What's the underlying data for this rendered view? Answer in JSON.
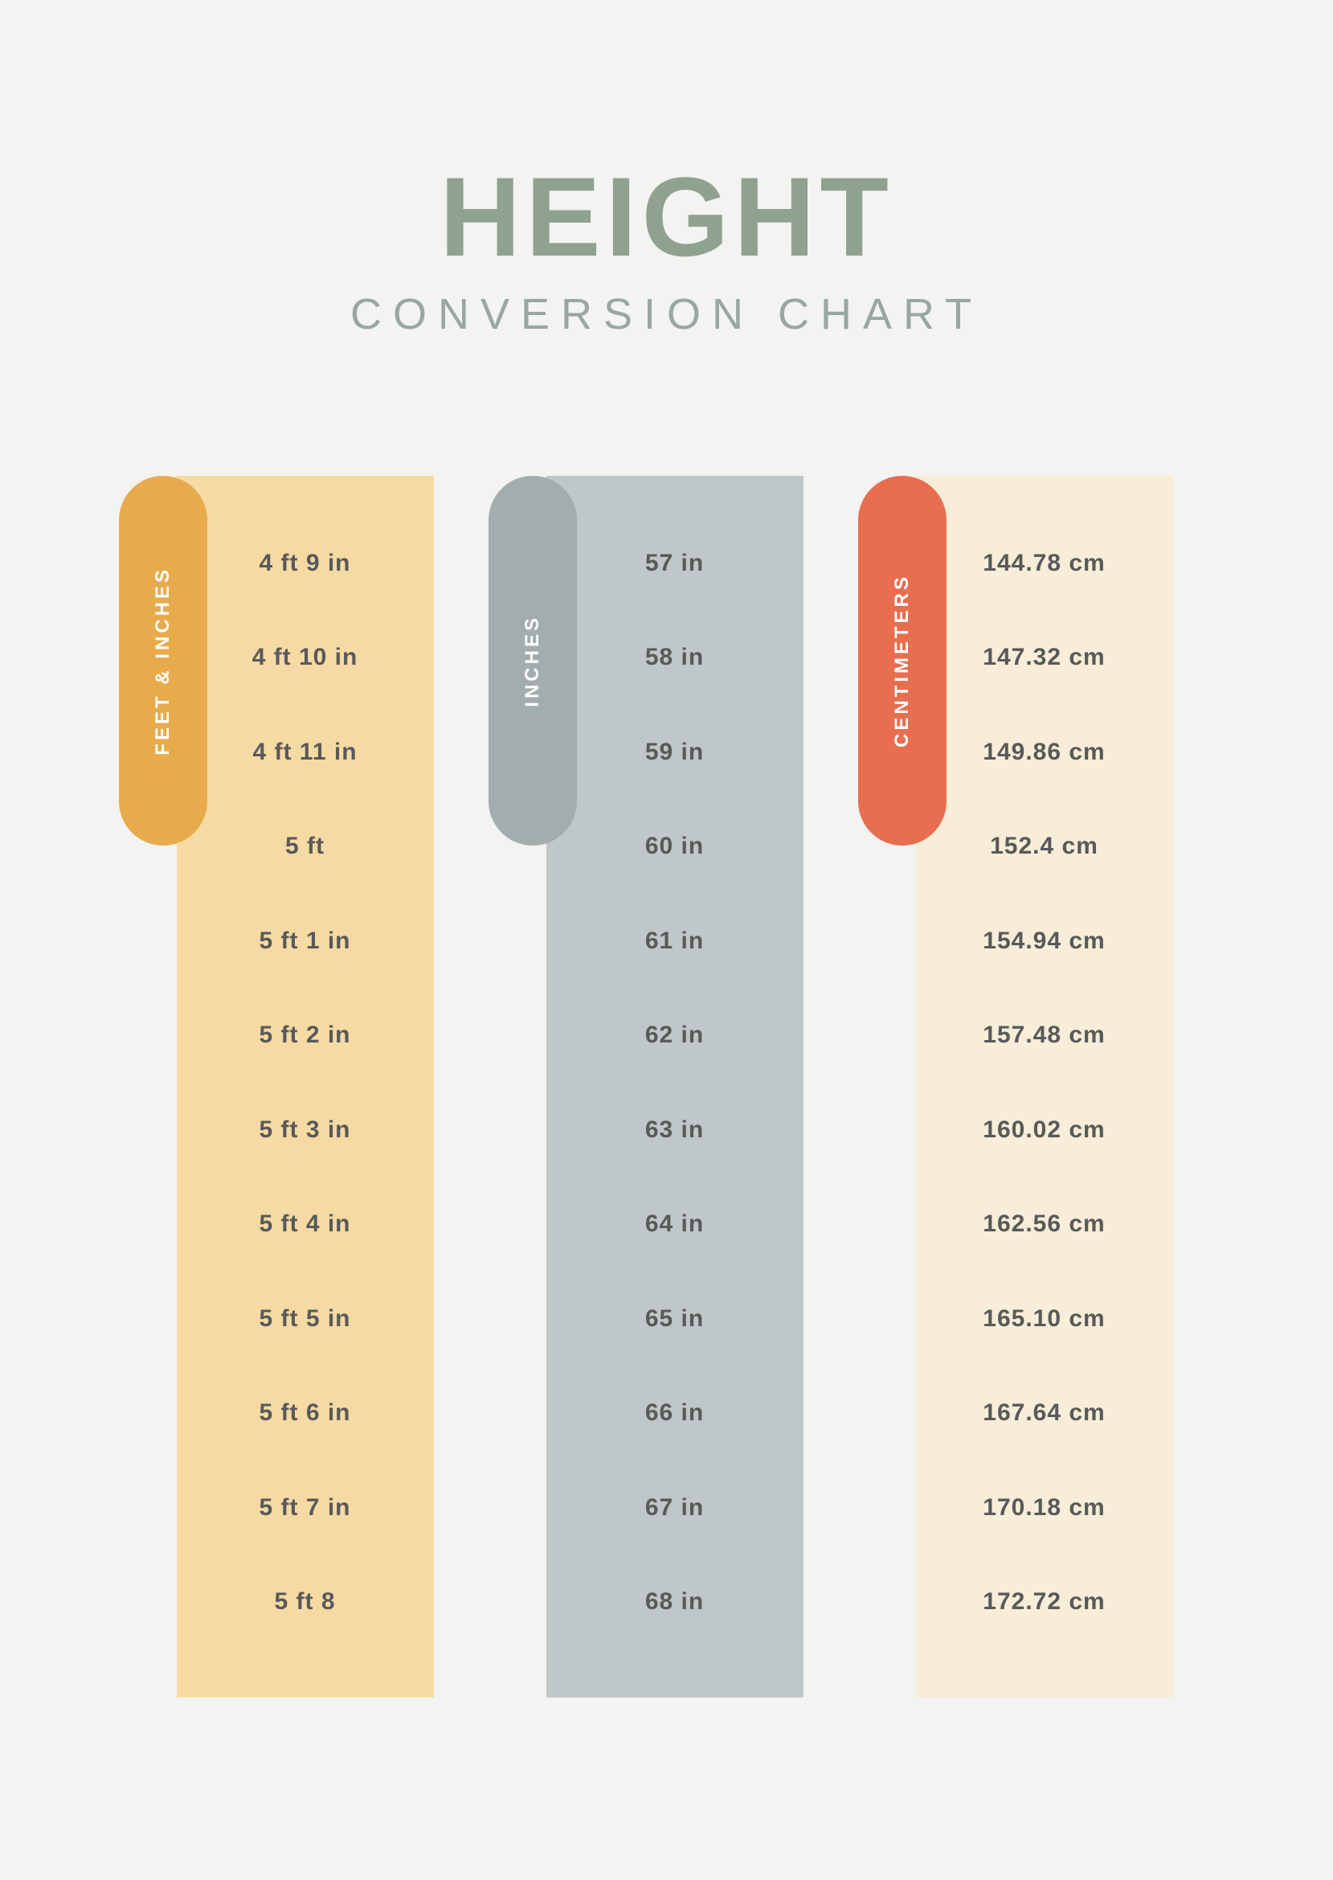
{
  "header": {
    "title": "HEIGHT",
    "subtitle": "CONVERSION CHART",
    "title_color": "#8fa28f",
    "subtitle_color": "#9aa7a0"
  },
  "background_color": "#f3f3f2",
  "columns": [
    {
      "key": "feet",
      "label": "FEET & INCHES",
      "tab_color": "#e8ab4c",
      "col_color": "#f6daa4",
      "values": [
        "4 ft 9 in",
        "4 ft 10 in",
        "4 ft 11 in",
        "5 ft",
        "5 ft 1 in",
        "5 ft 2 in",
        "5 ft 3 in",
        "5 ft 4 in",
        "5 ft 5 in",
        "5 ft 6 in",
        "5 ft 7 in",
        "5 ft 8"
      ]
    },
    {
      "key": "inches",
      "label": "INCHES",
      "tab_color": "#a4adae",
      "col_color": "#c0c7c8",
      "values": [
        "57 in",
        "58 in",
        "59 in",
        "60 in",
        "61 in",
        "62 in",
        "63 in",
        "64 in",
        "65 in",
        "66 in",
        "67 in",
        "68 in"
      ]
    },
    {
      "key": "cm",
      "label": "CENTIMETERS",
      "tab_color": "#e86e50",
      "col_color": "#f7edd8",
      "values": [
        "144.78 cm",
        "147.32 cm",
        "149.86 cm",
        "152.4 cm",
        "154.94 cm",
        "157.48 cm",
        "160.02 cm",
        "162.56 cm",
        "165.10 cm",
        "167.64 cm",
        "170.18 cm",
        "172.72 cm"
      ]
    }
  ],
  "cell_text_color": "#585959",
  "cell_fontsize": 30,
  "tab_text_color": "#ffffff"
}
